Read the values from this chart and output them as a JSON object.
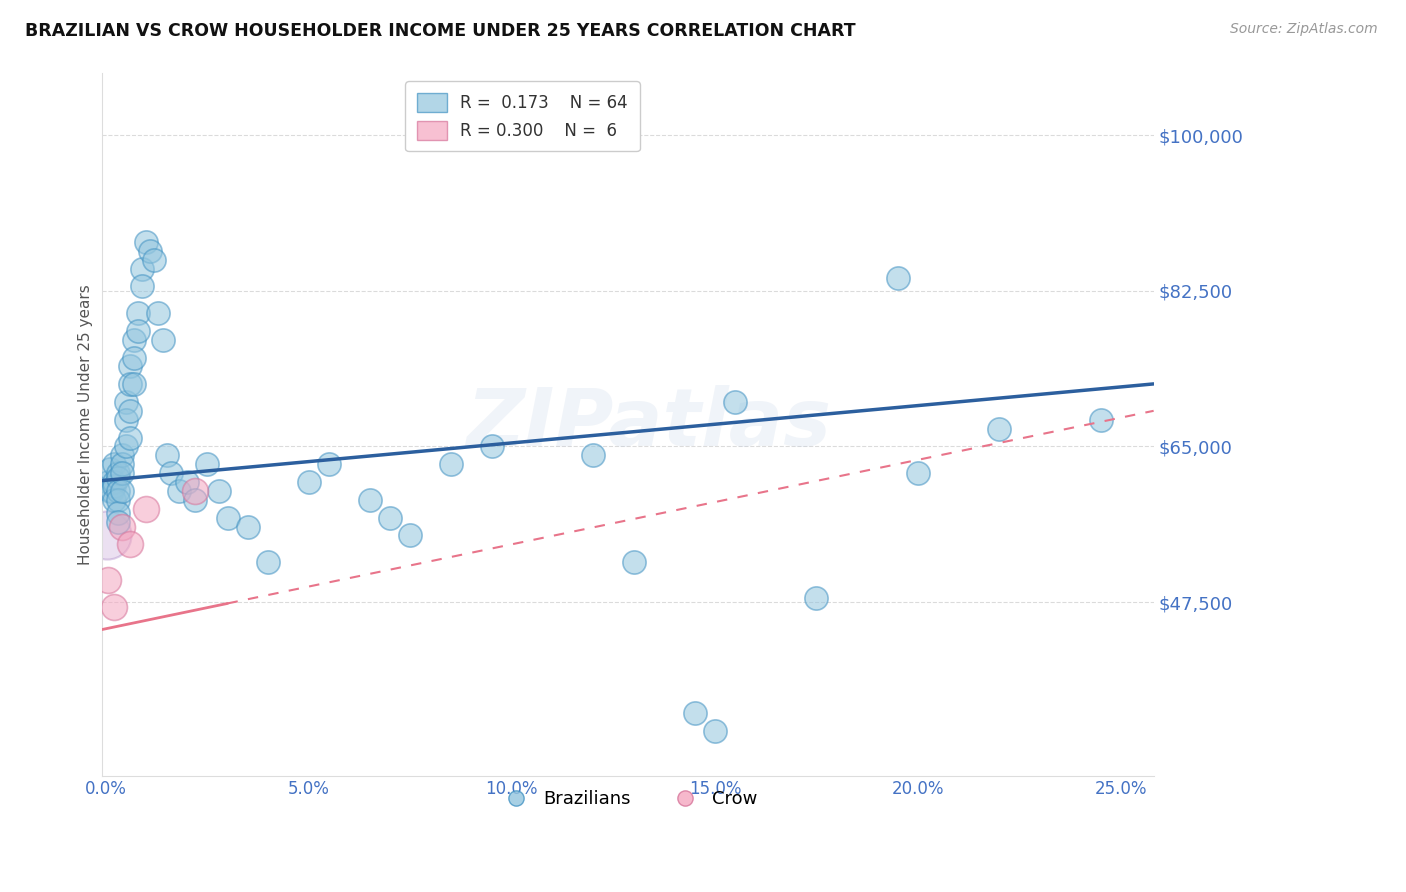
{
  "title": "BRAZILIAN VS CROW HOUSEHOLDER INCOME UNDER 25 YEARS CORRELATION CHART",
  "source": "Source: ZipAtlas.com",
  "ylabel": "Householder Income Under 25 years",
  "ytick_labels": [
    "$47,500",
    "$65,000",
    "$82,500",
    "$100,000"
  ],
  "ytick_values": [
    47500,
    65000,
    82500,
    100000
  ],
  "ymin": 28000,
  "ymax": 107000,
  "xmin": -0.001,
  "xmax": 0.258,
  "watermark": "ZIPatlas",
  "blue_color": "#92c5de",
  "blue_edge_color": "#4393c3",
  "blue_line_color": "#2c5f9e",
  "pink_color": "#f4a6c0",
  "pink_edge_color": "#d6749a",
  "pink_line_color": "#e8748a",
  "axis_color": "#4472C4",
  "grid_color": "#cccccc",
  "b_intercept": 61200,
  "b_slope": 42000,
  "p_intercept": 44500,
  "p_slope": 95000,
  "brazilians_x": [
    0.0005,
    0.001,
    0.001,
    0.0015,
    0.002,
    0.002,
    0.002,
    0.002,
    0.003,
    0.003,
    0.003,
    0.003,
    0.003,
    0.003,
    0.004,
    0.004,
    0.004,
    0.004,
    0.005,
    0.005,
    0.005,
    0.006,
    0.006,
    0.006,
    0.006,
    0.007,
    0.007,
    0.007,
    0.008,
    0.008,
    0.009,
    0.009,
    0.01,
    0.011,
    0.012,
    0.013,
    0.014,
    0.015,
    0.016,
    0.018,
    0.02,
    0.022,
    0.025,
    0.028,
    0.03,
    0.035,
    0.04,
    0.05,
    0.055,
    0.065,
    0.07,
    0.075,
    0.085,
    0.095,
    0.12,
    0.145,
    0.15,
    0.195,
    0.22,
    0.245,
    0.13,
    0.155,
    0.2,
    0.175
  ],
  "brazilians_y": [
    61000,
    62500,
    60000,
    60000,
    63000,
    61000,
    60500,
    59000,
    62000,
    61500,
    60000,
    59000,
    57500,
    56500,
    64000,
    63000,
    62000,
    60000,
    70000,
    68000,
    65000,
    74000,
    72000,
    69000,
    66000,
    77000,
    75000,
    72000,
    80000,
    78000,
    85000,
    83000,
    88000,
    87000,
    86000,
    80000,
    77000,
    64000,
    62000,
    60000,
    61000,
    59000,
    63000,
    60000,
    57000,
    56000,
    52000,
    61000,
    63000,
    59000,
    57000,
    55000,
    63000,
    65000,
    64000,
    35000,
    33000,
    84000,
    67000,
    68000,
    52000,
    70000,
    62000,
    48000
  ],
  "crow_x": [
    0.0005,
    0.002,
    0.004,
    0.006,
    0.01,
    0.022
  ],
  "crow_y": [
    50000,
    47000,
    56000,
    54000,
    58000,
    60000
  ],
  "xtick_positions": [
    0.0,
    0.05,
    0.1,
    0.15,
    0.2,
    0.25
  ],
  "xtick_labels": [
    "0.0%",
    "5.0%",
    "10.0%",
    "15.0%",
    "20.0%",
    "25.0%"
  ]
}
